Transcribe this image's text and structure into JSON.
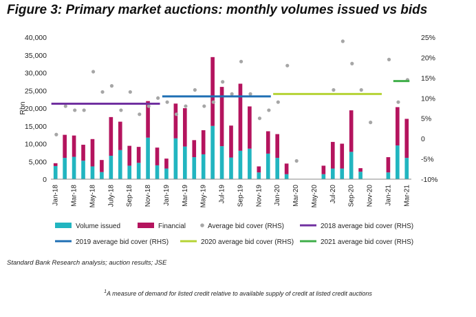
{
  "figure": {
    "title": "Figure 3: Primary market auctions: monthly volumes issued vs bids",
    "source": "Standard Bank Research analysis; auction results; JSE",
    "footnote_mark": "1",
    "footnote": "A measure of demand for listed credit relative to available supply of credit at listed credit auctions"
  },
  "chart_data": {
    "type": "bar",
    "stacked": true,
    "ylabel": "Rbn",
    "ylim": [
      0,
      40000
    ],
    "yticks": [
      "0",
      "5,000",
      "10,000",
      "15,000",
      "20,000",
      "25,000",
      "30,000",
      "35,000",
      "40,000"
    ],
    "y2lim": [
      -10,
      25
    ],
    "y2ticks": [
      "-10%",
      "-5%",
      "0",
      "5%",
      "10%",
      "15%",
      "20%",
      "25%"
    ],
    "categories": [
      "Jan-18",
      "Feb-18",
      "Mar-18",
      "Apr-18",
      "May-18",
      "Jun-18",
      "Jul-18",
      "Aug-18",
      "Sep-18",
      "Oct-18",
      "Nov-18",
      "Dec-18",
      "Jan-19",
      "Feb-19",
      "Mar-19",
      "Apr-19",
      "May-19",
      "Jun-19",
      "Jul-19",
      "Aug-19",
      "Sep-19",
      "Oct-19",
      "Nov-19",
      "Dec-19",
      "Jan-20",
      "Feb-20",
      "Mar-20",
      "Apr-20",
      "May-20",
      "Jun-20",
      "Jul-20",
      "Aug-20",
      "Sep-20",
      "Oct-20",
      "Nov-20",
      "Dec-20",
      "Jan-21",
      "Feb-21",
      "Mar-21"
    ],
    "xticklabels": [
      "Jan-18",
      "Mar-18",
      "May-18",
      "July-18",
      "Sep-18",
      "Nov-18",
      "Jan-19",
      "Mar-19",
      "May-19",
      "Jul-19",
      "Sep-19",
      "Nov-19",
      "Jan-20",
      "Mar-20",
      "May-20",
      "Jul-20",
      "Sep-20",
      "Nov-20",
      "Jan-21",
      "Mar-21"
    ],
    "series": [
      {
        "name": "Volume issued",
        "color": "#22b5c0",
        "values": [
          3700,
          6000,
          6300,
          5200,
          3600,
          2000,
          6600,
          8200,
          3800,
          4600,
          11700,
          3900,
          3000,
          11500,
          9200,
          6200,
          7000,
          15000,
          9300,
          6100,
          8000,
          8600,
          1900,
          7200,
          6000,
          1400,
          0,
          0,
          0,
          1400,
          3000,
          3000,
          7700,
          2100,
          0,
          0,
          1900,
          9500,
          6000
        ]
      },
      {
        "name": "Financial",
        "color": "#b4145e",
        "values": [
          800,
          6500,
          6000,
          4500,
          7700,
          3400,
          10900,
          8000,
          5600,
          4500,
          10300,
          5000,
          2800,
          9800,
          10800,
          4800,
          6800,
          19400,
          16700,
          9000,
          18900,
          11900,
          1700,
          6300,
          6700,
          3000,
          0,
          0,
          0,
          2400,
          7500,
          7000,
          11700,
          1000,
          0,
          0,
          4300,
          10800,
          11000
        ]
      },
      {
        "name": "Average bid cover (RHS)",
        "color": "#a6a6a6",
        "axis": "right",
        "values": [
          1,
          8,
          7,
          7,
          16.5,
          11.5,
          13,
          7,
          11.5,
          6,
          8,
          10,
          9,
          6,
          8,
          12,
          8,
          9,
          14,
          11,
          19,
          11,
          5,
          7,
          9,
          18,
          -5.5,
          null,
          null,
          null,
          12,
          24,
          18.5,
          12,
          4,
          null,
          19.5,
          9,
          14.5
        ]
      },
      {
        "name": "2018 average bid cover (RHS)",
        "color": "#7030a0",
        "axis": "right",
        "from": "Jan-18",
        "to": "Dec-18",
        "value": 8.6
      },
      {
        "name": "2019 average bid cover (RHS)",
        "color": "#1f6fb4",
        "axis": "right",
        "from": "Jan-19",
        "to": "Dec-19",
        "value": 10.4
      },
      {
        "name": "2020 average bid cover (RHS)",
        "color": "#b5d334",
        "axis": "right",
        "from": "Jan-20",
        "to": "Dec-20",
        "value": 11
      },
      {
        "name": "2021 average bid cover (RHS)",
        "color": "#3fae49",
        "axis": "right",
        "from": "Feb-21",
        "to": "Mar-21",
        "value": 14.2
      }
    ],
    "legend": "bottom"
  }
}
